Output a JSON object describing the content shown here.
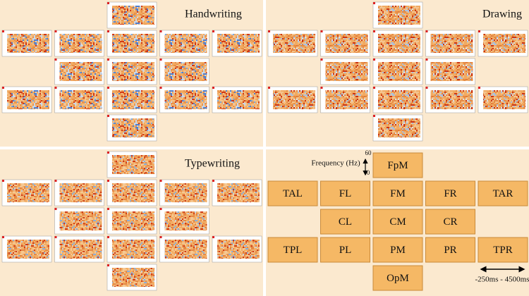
{
  "panels": [
    {
      "title": "Handwriting"
    },
    {
      "title": "Drawing"
    },
    {
      "title": "Typewriting"
    }
  ],
  "legend": {
    "regions": [
      [
        "FpM"
      ],
      [
        "TAL",
        "FL",
        "FM",
        "FR",
        "TAR"
      ],
      [
        "CL",
        "CM",
        "CR"
      ],
      [
        "TPL",
        "PL",
        "PM",
        "PR",
        "TPR"
      ],
      [
        "OpM"
      ]
    ],
    "frequency_label": "Frequency (Hz)",
    "frequency_top": "60",
    "frequency_bottom": "0",
    "time_label": "-250ms - 4500ms"
  }
}
